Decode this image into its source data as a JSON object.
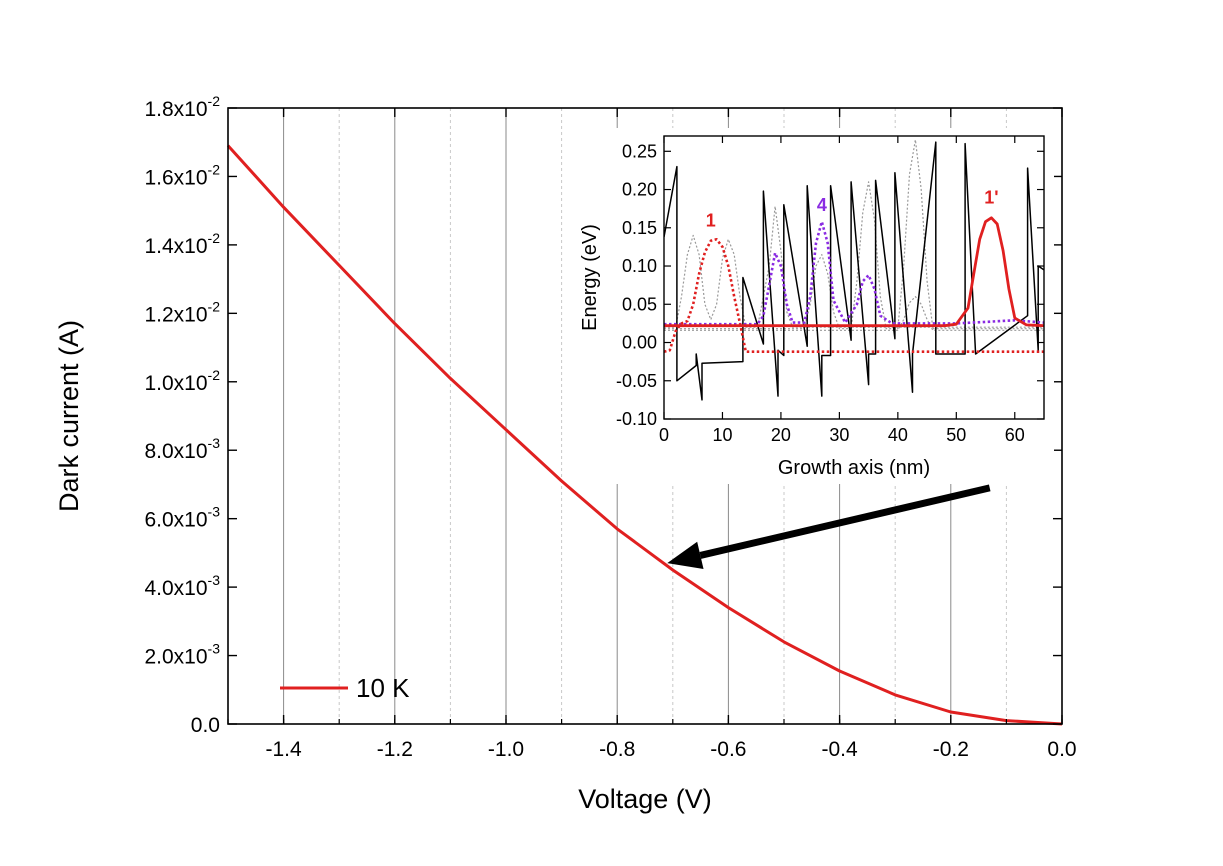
{
  "chart_data": [
    {
      "type": "line",
      "role": "main",
      "title": "",
      "xlabel": "Voltage (V)",
      "ylabel": "Dark current (A)",
      "xlim": [
        -1.5,
        0.0
      ],
      "ylim": [
        0.0,
        0.018
      ],
      "grid": "vertical",
      "x_ticks": [
        -1.4,
        -1.2,
        -1.0,
        -0.8,
        -0.6,
        -0.4,
        -0.2,
        0.0
      ],
      "x_tick_labels": [
        "-1.4",
        "-1.2",
        "-1.0",
        "-0.8",
        "-0.6",
        "-0.4",
        "-0.2",
        "0.0"
      ],
      "y_ticks": [
        {
          "value": 0.0,
          "mantissa": "0.0",
          "exponent": ""
        },
        {
          "value": 0.002,
          "mantissa": "2.0x10",
          "exponent": "-3"
        },
        {
          "value": 0.004,
          "mantissa": "4.0x10",
          "exponent": "-3"
        },
        {
          "value": 0.006,
          "mantissa": "6.0x10",
          "exponent": "-3"
        },
        {
          "value": 0.008,
          "mantissa": "8.0x10",
          "exponent": "-3"
        },
        {
          "value": 0.01,
          "mantissa": "1.0x10",
          "exponent": "-2"
        },
        {
          "value": 0.012,
          "mantissa": "1.2x10",
          "exponent": "-2"
        },
        {
          "value": 0.014,
          "mantissa": "1.4x10",
          "exponent": "-2"
        },
        {
          "value": 0.016,
          "mantissa": "1.6x10",
          "exponent": "-2"
        },
        {
          "value": 0.018,
          "mantissa": "1.8x10",
          "exponent": "-2"
        }
      ],
      "legend": {
        "position": "bottom-left",
        "entries": [
          {
            "label": "10 K",
            "color": "#e02020"
          }
        ]
      },
      "series": [
        {
          "name": "10 K",
          "color": "#e02020",
          "x": [
            -1.5,
            -1.4,
            -1.3,
            -1.2,
            -1.1,
            -1.0,
            -0.9,
            -0.8,
            -0.7,
            -0.6,
            -0.5,
            -0.4,
            -0.3,
            -0.2,
            -0.1,
            0.0
          ],
          "y": [
            0.0169,
            0.0151,
            0.0134,
            0.0117,
            0.0101,
            0.0086,
            0.0071,
            0.0057,
            0.0045,
            0.0034,
            0.0024,
            0.00155,
            0.00085,
            0.00035,
            0.0001,
            0.0
          ]
        }
      ],
      "annotation": {
        "type": "arrow",
        "from": [
          -0.13,
          0.0069
        ],
        "to": [
          -0.71,
          0.0047
        ]
      }
    },
    {
      "type": "line",
      "role": "inset",
      "title": "",
      "xlabel": "Growth axis (nm)",
      "ylabel": "Energy (eV)",
      "xlim": [
        0,
        65
      ],
      "ylim": [
        -0.1,
        0.27
      ],
      "x_ticks": [
        0,
        10,
        20,
        30,
        40,
        50,
        60
      ],
      "x_tick_labels": [
        "0",
        "10",
        "20",
        "30",
        "40",
        "50",
        "60"
      ],
      "y_ticks": [
        -0.1,
        -0.05,
        0.0,
        0.05,
        0.1,
        0.15,
        0.2,
        0.25
      ],
      "y_tick_labels": [
        "-0.10",
        "-0.05",
        "0.00",
        "0.05",
        "0.10",
        "0.15",
        "0.20",
        "0.25"
      ],
      "labels": [
        {
          "text": "1",
          "x": 8,
          "y": 0.152,
          "color": "#e02020"
        },
        {
          "text": "4",
          "x": 27,
          "y": 0.172,
          "color": "#8a2be2"
        },
        {
          "text": "1'",
          "x": 56,
          "y": 0.182,
          "color": "#e02020"
        }
      ],
      "series": [
        {
          "style": "solid",
          "color": "#000000",
          "x": [
            0,
            2.2,
            2.2,
            5.5,
            5.5,
            6.5,
            6.5,
            13.5,
            13.5,
            17,
            17,
            19.5,
            19.5,
            20.5,
            20.5,
            24.5,
            24.5,
            27,
            27,
            28.5,
            28.5,
            32,
            32,
            35,
            35,
            36.2,
            36.2,
            39.5,
            39.5,
            42.5,
            42.5,
            46.5,
            46.5,
            51.5,
            51.5,
            53.3,
            53.3,
            62.2,
            62.2,
            64,
            64,
            65
          ],
          "y": [
            0.138,
            0.23,
            -0.05,
            -0.03,
            -0.015,
            -0.075,
            -0.027,
            -0.025,
            0.085,
            -0.002,
            0.198,
            -0.07,
            -0.01,
            -0.017,
            0.18,
            -0.005,
            0.205,
            -0.07,
            -0.017,
            -0.017,
            0.205,
            0.003,
            0.21,
            -0.055,
            -0.015,
            -0.015,
            0.212,
            0.005,
            0.222,
            -0.065,
            -0.015,
            0.262,
            -0.015,
            -0.015,
            0.26,
            -0.015,
            -0.015,
            0.035,
            0.228,
            -0.01,
            0.1,
            0.095
          ]
        },
        {
          "style": "solid",
          "color": "#e02020",
          "name": "1'",
          "x": [
            0,
            48,
            50,
            52,
            53,
            54,
            55,
            56,
            57,
            58,
            59,
            60,
            62,
            65
          ],
          "y": [
            0.022,
            0.022,
            0.024,
            0.045,
            0.09,
            0.135,
            0.158,
            0.163,
            0.155,
            0.12,
            0.07,
            0.032,
            0.023,
            0.022
          ]
        },
        {
          "style": "dotted",
          "color": "#e02020",
          "name": "1",
          "x": [
            0,
            1,
            2,
            3,
            4,
            5,
            6,
            7,
            8,
            9,
            10,
            11,
            12,
            13,
            14,
            15,
            65
          ],
          "y": [
            -0.012,
            -0.01,
            0.015,
            0.025,
            0.028,
            0.05,
            0.09,
            0.118,
            0.133,
            0.135,
            0.125,
            0.1,
            0.06,
            0.025,
            -0.012,
            -0.012,
            -0.012
          ]
        },
        {
          "style": "dotted",
          "color": "#8a2be2",
          "name": "4",
          "x": [
            0,
            16,
            17,
            18,
            19,
            20,
            21,
            22,
            24,
            25,
            26,
            27,
            28,
            29,
            31,
            33,
            34,
            35,
            36,
            37,
            39,
            50,
            55,
            60,
            65
          ],
          "y": [
            0.024,
            0.024,
            0.035,
            0.075,
            0.117,
            0.1,
            0.05,
            0.026,
            0.026,
            0.06,
            0.13,
            0.158,
            0.13,
            0.055,
            0.026,
            0.05,
            0.08,
            0.088,
            0.07,
            0.035,
            0.025,
            0.025,
            0.027,
            0.029,
            0.026
          ]
        },
        {
          "style": "dotted",
          "color": "#999999",
          "x": [
            0,
            2,
            3,
            4,
            5,
            6,
            7,
            8,
            9,
            10,
            11,
            12,
            13,
            14,
            16,
            18,
            19,
            20,
            21,
            22,
            65
          ],
          "y": [
            0.02,
            0.02,
            0.06,
            0.115,
            0.14,
            0.115,
            0.05,
            0.03,
            0.05,
            0.11,
            0.135,
            0.115,
            0.06,
            0.02,
            0.02,
            0.1,
            0.178,
            0.12,
            0.04,
            0.02,
            0.02
          ]
        },
        {
          "style": "dotted",
          "color": "#999999",
          "x": [
            0,
            24,
            25,
            26,
            27,
            28,
            29,
            30,
            32,
            33,
            34,
            35,
            36,
            37,
            38,
            40,
            41,
            42,
            43,
            44,
            45,
            46,
            65
          ],
          "y": [
            0.018,
            0.018,
            0.05,
            0.1,
            0.115,
            0.09,
            0.04,
            0.018,
            0.018,
            0.08,
            0.17,
            0.21,
            0.16,
            0.06,
            0.018,
            0.018,
            0.1,
            0.22,
            0.265,
            0.2,
            0.08,
            0.018,
            0.018
          ]
        },
        {
          "style": "dotted",
          "color": "#999999",
          "x": [
            0,
            40,
            41,
            42,
            43,
            44,
            45,
            46,
            65
          ],
          "y": [
            0.016,
            0.016,
            0.03,
            0.052,
            0.06,
            0.05,
            0.03,
            0.016,
            0.016
          ]
        }
      ]
    }
  ]
}
